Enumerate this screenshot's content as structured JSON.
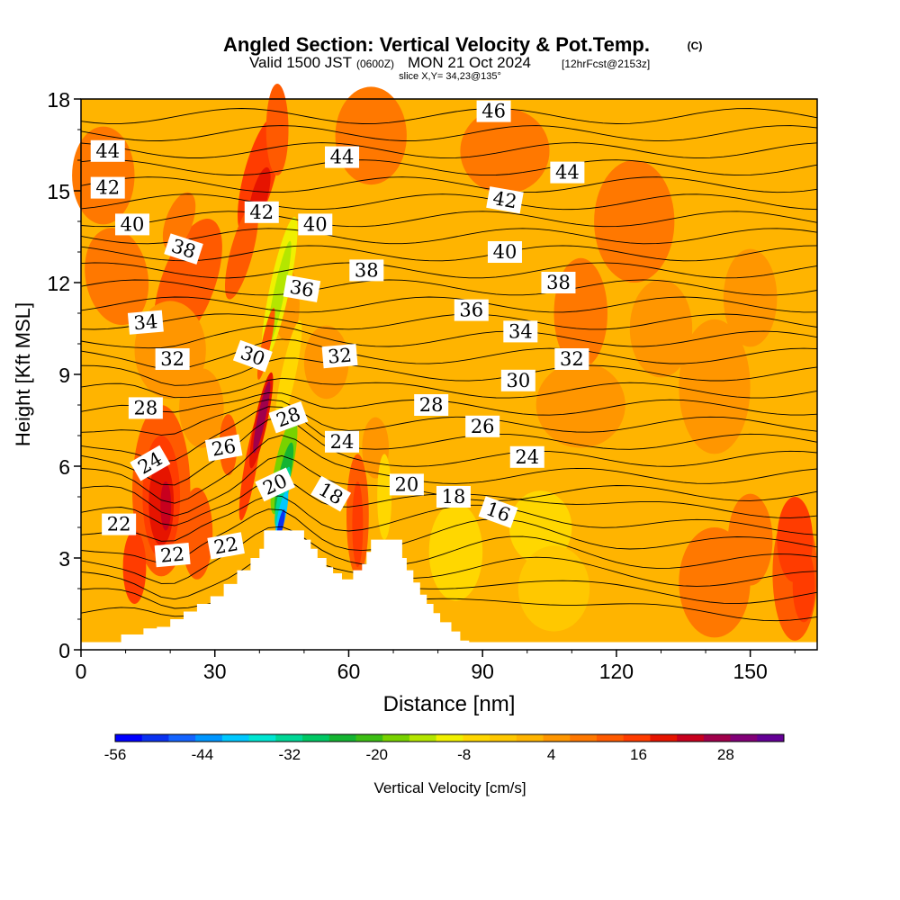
{
  "chart_data": {
    "type": "heatmap",
    "title": "Angled Section: Vertical Velocity & Pot.Temp.",
    "title_badge": "(C)",
    "subtitle_main": "Valid 1500 JST",
    "subtitle_z": "(0600Z)",
    "subtitle_date": "MON 21 Oct 2024",
    "subtitle_fcst": "[12hrFcst@2153z]",
    "slice": "slice X,Y= 34,23@135°",
    "xlabel": "Distance [nm]",
    "ylabel": "Height [Kft MSL]",
    "xlim": [
      0,
      165
    ],
    "ylim": [
      0,
      18
    ],
    "x_ticks": [
      "0",
      "30",
      "60",
      "90",
      "120",
      "150"
    ],
    "y_ticks": [
      "0",
      "3",
      "6",
      "9",
      "12",
      "15",
      "18"
    ],
    "colorbar": {
      "label": "Vertical Velocity [cm/s]",
      "ticks": [
        "-56",
        "-44",
        "-32",
        "-20",
        "-8",
        "4",
        "16",
        "28"
      ],
      "min": -60,
      "max": 32,
      "step": 4,
      "colors": [
        "#0000ff",
        "#0a32f0",
        "#1464ff",
        "#0096ff",
        "#00c8ff",
        "#00e6d2",
        "#00d796",
        "#00c864",
        "#14b432",
        "#3cbe14",
        "#78d200",
        "#b4e600",
        "#f0f000",
        "#ffd700",
        "#ffc800",
        "#ffb400",
        "#ff9600",
        "#ff7800",
        "#ff5a00",
        "#ff3c00",
        "#e61400",
        "#c8001e",
        "#a0004b",
        "#820078",
        "#640096"
      ]
    },
    "terrain_peaks_kft": [
      3.9,
      3.6
    ],
    "theta_labels": [
      {
        "text": "44",
        "x": 6,
        "y": 16.3,
        "r": 0
      },
      {
        "text": "42",
        "x": 6,
        "y": 15.1,
        "r": 0
      },
      {
        "text": "40",
        "x": 11.5,
        "y": 13.9,
        "r": 0
      },
      {
        "text": "38",
        "x": 23,
        "y": 13.1,
        "r": 18
      },
      {
        "text": "34",
        "x": 14.5,
        "y": 10.7,
        "r": -5
      },
      {
        "text": "32",
        "x": 20.5,
        "y": 9.5,
        "r": 0
      },
      {
        "text": "28",
        "x": 14.5,
        "y": 7.9,
        "r": 0
      },
      {
        "text": "24",
        "x": 15.5,
        "y": 6.1,
        "r": -30
      },
      {
        "text": "22",
        "x": 8.5,
        "y": 4.1,
        "r": 0
      },
      {
        "text": "22",
        "x": 20.5,
        "y": 3.1,
        "r": -5
      },
      {
        "text": "22",
        "x": 32.5,
        "y": 3.4,
        "r": -10
      },
      {
        "text": "26",
        "x": 32,
        "y": 6.6,
        "r": -10
      },
      {
        "text": "30",
        "x": 38.5,
        "y": 9.6,
        "r": 20
      },
      {
        "text": "28",
        "x": 46.5,
        "y": 7.6,
        "r": -20
      },
      {
        "text": "20",
        "x": 43.5,
        "y": 5.4,
        "r": -25
      },
      {
        "text": "42",
        "x": 40.5,
        "y": 14.3,
        "r": 0
      },
      {
        "text": "40",
        "x": 52.5,
        "y": 13.9,
        "r": 0
      },
      {
        "text": "36",
        "x": 49.5,
        "y": 11.8,
        "r": 10
      },
      {
        "text": "32",
        "x": 58,
        "y": 9.6,
        "r": -5
      },
      {
        "text": "24",
        "x": 58.5,
        "y": 6.8,
        "r": 0
      },
      {
        "text": "18",
        "x": 56,
        "y": 5.1,
        "r": 30
      },
      {
        "text": "44",
        "x": 58.5,
        "y": 16.1,
        "r": 0
      },
      {
        "text": "38",
        "x": 64,
        "y": 12.4,
        "r": 0
      },
      {
        "text": "28",
        "x": 78.5,
        "y": 8.0,
        "r": 0
      },
      {
        "text": "20",
        "x": 73,
        "y": 5.4,
        "r": 0
      },
      {
        "text": "18",
        "x": 83.5,
        "y": 5.0,
        "r": 0
      },
      {
        "text": "46",
        "x": 92.5,
        "y": 17.6,
        "r": 0
      },
      {
        "text": "42",
        "x": 95,
        "y": 14.7,
        "r": 10
      },
      {
        "text": "40",
        "x": 95,
        "y": 13.0,
        "r": 0
      },
      {
        "text": "36",
        "x": 87.5,
        "y": 11.1,
        "r": 0
      },
      {
        "text": "34",
        "x": 98.5,
        "y": 10.4,
        "r": 0
      },
      {
        "text": "30",
        "x": 98,
        "y": 8.8,
        "r": 0
      },
      {
        "text": "26",
        "x": 90,
        "y": 7.3,
        "r": 0
      },
      {
        "text": "24",
        "x": 100,
        "y": 6.3,
        "r": 0
      },
      {
        "text": "16",
        "x": 93.5,
        "y": 4.5,
        "r": 20
      },
      {
        "text": "44",
        "x": 109,
        "y": 15.6,
        "r": 0
      },
      {
        "text": "38",
        "x": 107,
        "y": 12.0,
        "r": 0
      },
      {
        "text": "32",
        "x": 110,
        "y": 9.5,
        "r": 0
      }
    ]
  }
}
